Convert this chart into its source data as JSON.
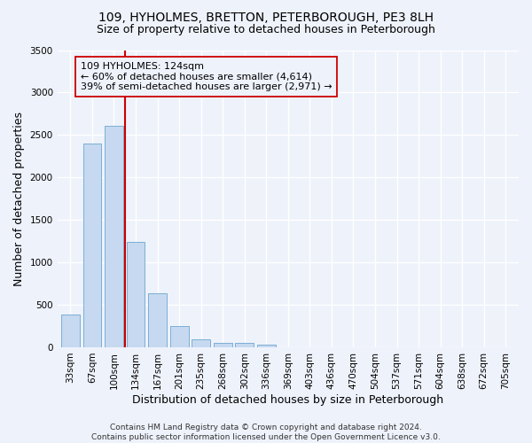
{
  "title": "109, HYHOLMES, BRETTON, PETERBOROUGH, PE3 8LH",
  "subtitle": "Size of property relative to detached houses in Peterborough",
  "xlabel": "Distribution of detached houses by size in Peterborough",
  "ylabel": "Number of detached properties",
  "categories": [
    "33sqm",
    "67sqm",
    "100sqm",
    "134sqm",
    "167sqm",
    "201sqm",
    "235sqm",
    "268sqm",
    "302sqm",
    "336sqm",
    "369sqm",
    "403sqm",
    "436sqm",
    "470sqm",
    "504sqm",
    "537sqm",
    "571sqm",
    "604sqm",
    "638sqm",
    "672sqm",
    "705sqm"
  ],
  "values": [
    390,
    2400,
    2610,
    1240,
    640,
    255,
    95,
    55,
    50,
    35,
    0,
    0,
    0,
    0,
    0,
    0,
    0,
    0,
    0,
    0,
    0
  ],
  "bar_color": "#c6d9f0",
  "bar_edgecolor": "#7bafd4",
  "vline_color": "#cc0000",
  "annotation_text": "109 HYHOLMES: 124sqm\n← 60% of detached houses are smaller (4,614)\n39% of semi-detached houses are larger (2,971) →",
  "annotation_box_edgecolor": "#cc0000",
  "ylim": [
    0,
    3500
  ],
  "yticks": [
    0,
    500,
    1000,
    1500,
    2000,
    2500,
    3000,
    3500
  ],
  "footer_text": "Contains HM Land Registry data © Crown copyright and database right 2024.\nContains public sector information licensed under the Open Government Licence v3.0.",
  "bg_color": "#eef2fb",
  "grid_color": "#ffffff",
  "title_fontsize": 10,
  "subtitle_fontsize": 9,
  "xlabel_fontsize": 9,
  "ylabel_fontsize": 9,
  "tick_fontsize": 7.5,
  "annotation_fontsize": 8,
  "footer_fontsize": 6.5
}
